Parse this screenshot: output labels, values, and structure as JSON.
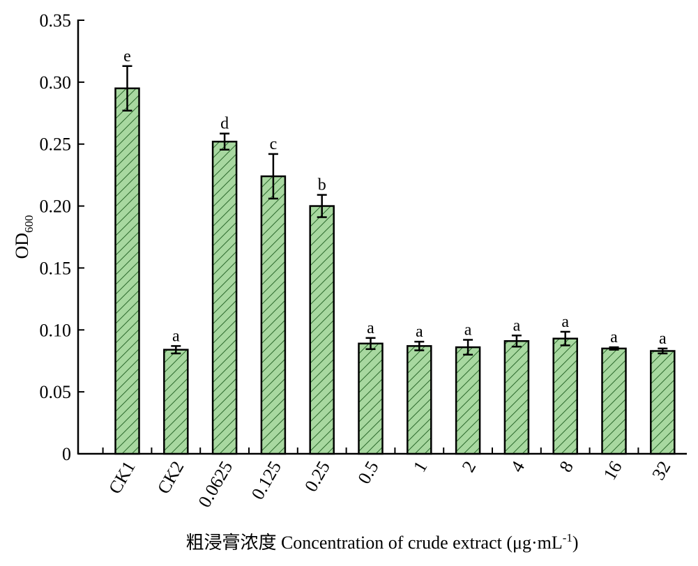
{
  "chart_data": {
    "type": "bar",
    "categories": [
      "CK1",
      "CK2",
      "0.0625",
      "0.125",
      "0.25",
      "0.5",
      "1",
      "2",
      "4",
      "8",
      "16",
      "32"
    ],
    "values": [
      0.295,
      0.084,
      0.252,
      0.224,
      0.2,
      0.089,
      0.087,
      0.086,
      0.091,
      0.093,
      0.085,
      0.083
    ],
    "errors": [
      0.018,
      0.003,
      0.0065,
      0.018,
      0.009,
      0.0045,
      0.0035,
      0.006,
      0.0045,
      0.0055,
      0.001,
      0.002
    ],
    "significance": [
      "e",
      "a",
      "d",
      "c",
      "b",
      "a",
      "a",
      "a",
      "a",
      "a",
      "a",
      "a"
    ],
    "ylim": [
      0,
      0.35
    ],
    "yticks": [
      "0",
      "0.05",
      "0.10",
      "0.15",
      "0.20",
      "0.25",
      "0.30",
      "0.35"
    ],
    "ylabel_main": "OD",
    "ylabel_sub": "600",
    "xlabel_main": "粗浸膏浓度 Concentration of crude extract (μg·mL",
    "xlabel_sup": "-1",
    "xlabel_end": ")",
    "grid": false,
    "bar_color": "#a8d8a0",
    "hatch_color": "#2e6b2e",
    "edge_color": "#000000"
  }
}
